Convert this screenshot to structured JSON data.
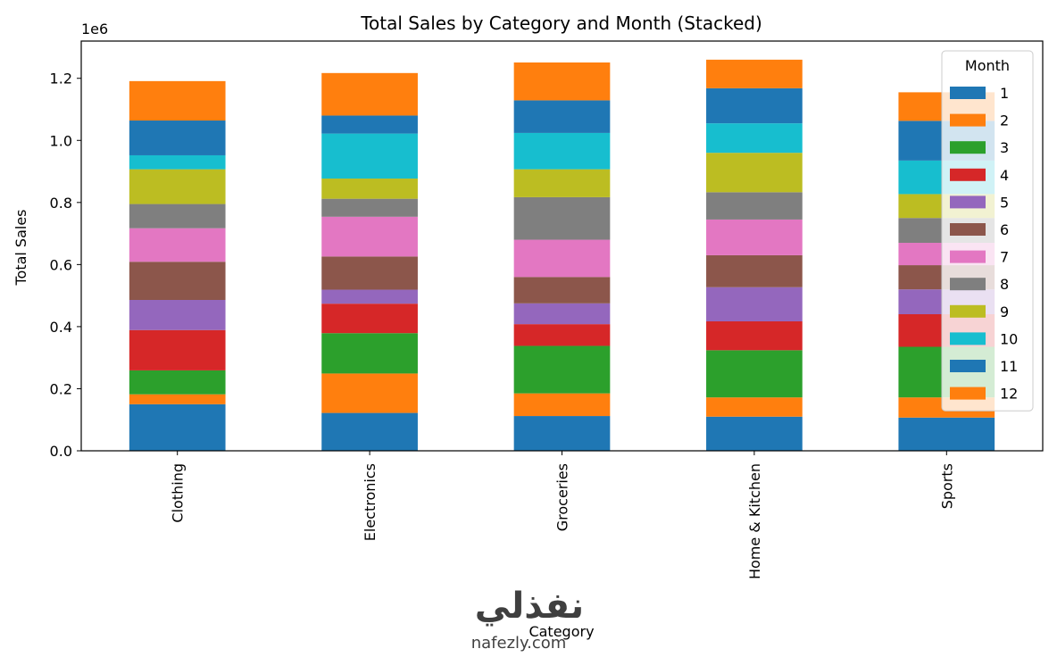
{
  "chart_data": {
    "type": "bar",
    "stacked": true,
    "title": "Total Sales by Category and Month (Stacked)",
    "xlabel": "Category",
    "ylabel": "Total Sales",
    "y_multiplier_label": "1e6",
    "ylim": [
      0,
      1.32
    ],
    "yticks": [
      "0.0",
      "0.2",
      "0.4",
      "0.6",
      "0.8",
      "1.0",
      "1.2"
    ],
    "yticks_values": [
      0,
      0.2,
      0.4,
      0.6,
      0.8,
      1.0,
      1.2
    ],
    "categories": [
      "Clothing",
      "Electronics",
      "Groceries",
      "Home & Kitchen",
      "Sports"
    ],
    "legend": {
      "title": "Month",
      "placement": "top-right"
    },
    "grid": false,
    "series": [
      {
        "name": "1",
        "color": "#1f77b4",
        "values": [
          0.15,
          0.122,
          0.112,
          0.11,
          0.107
        ]
      },
      {
        "name": "2",
        "color": "#ff7f0e",
        "values": [
          0.032,
          0.127,
          0.073,
          0.062,
          0.065
        ]
      },
      {
        "name": "3",
        "color": "#2ca02c",
        "values": [
          0.077,
          0.13,
          0.153,
          0.152,
          0.163
        ]
      },
      {
        "name": "4",
        "color": "#d62728",
        "values": [
          0.13,
          0.095,
          0.07,
          0.093,
          0.105
        ]
      },
      {
        "name": "5",
        "color": "#9467bd",
        "values": [
          0.097,
          0.045,
          0.067,
          0.11,
          0.08
        ]
      },
      {
        "name": "6",
        "color": "#8c564b",
        "values": [
          0.123,
          0.107,
          0.085,
          0.103,
          0.078
        ]
      },
      {
        "name": "7",
        "color": "#e377c2",
        "values": [
          0.108,
          0.128,
          0.12,
          0.115,
          0.072
        ]
      },
      {
        "name": "8",
        "color": "#7f7f7f",
        "values": [
          0.078,
          0.058,
          0.137,
          0.088,
          0.08
        ]
      },
      {
        "name": "9",
        "color": "#bcbd22",
        "values": [
          0.112,
          0.065,
          0.09,
          0.127,
          0.077
        ]
      },
      {
        "name": "10",
        "color": "#17becf",
        "values": [
          0.045,
          0.145,
          0.117,
          0.095,
          0.108
        ]
      },
      {
        "name": "11",
        "color": "#1f77b4",
        "values": [
          0.112,
          0.058,
          0.105,
          0.113,
          0.128
        ]
      },
      {
        "name": "12",
        "color": "#ff7f0e",
        "values": [
          0.127,
          0.137,
          0.122,
          0.092,
          0.092
        ]
      }
    ]
  },
  "watermark": {
    "arabic": "نفذلي",
    "latin": "nafezly.com"
  }
}
